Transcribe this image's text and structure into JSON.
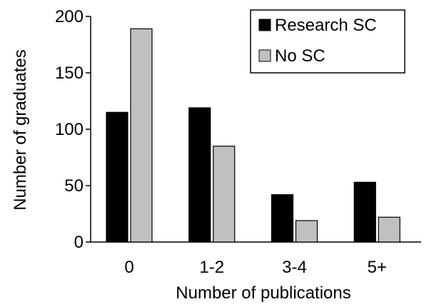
{
  "chart_data": {
    "type": "bar",
    "title": "",
    "xlabel": "Number of publications",
    "ylabel": "Number of graduates",
    "ylim": [
      0,
      200
    ],
    "yticks": [
      0,
      50,
      100,
      150,
      200
    ],
    "categories": [
      "0",
      "1-2",
      "3-4",
      "5+"
    ],
    "series": [
      {
        "name": "Research SC",
        "values": [
          115,
          119,
          42,
          53
        ],
        "color": "#000000"
      },
      {
        "name": "No SC",
        "values": [
          189,
          85,
          19,
          22
        ],
        "color": "#c0c0c0"
      }
    ],
    "legend_position": "top-right",
    "grid": false
  }
}
